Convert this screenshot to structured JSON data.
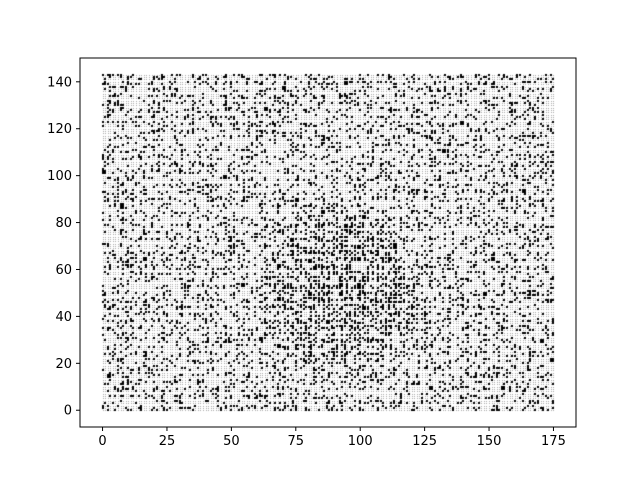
{
  "chart_data": {
    "type": "scatter",
    "title": "",
    "xlabel": "",
    "ylabel": "",
    "xlim": [
      -8.75,
      183.75
    ],
    "ylim": [
      -7.15,
      150.15
    ],
    "x_ticks": [
      0,
      25,
      50,
      75,
      100,
      125,
      150,
      175
    ],
    "y_ticks": [
      0,
      20,
      40,
      60,
      80,
      100,
      120,
      140
    ],
    "x_tick_labels": [
      "0",
      "25",
      "50",
      "75",
      "100",
      "125",
      "150",
      "175"
    ],
    "y_tick_labels": [
      "0",
      "20",
      "40",
      "60",
      "80",
      "100",
      "120",
      "140"
    ],
    "grid": false,
    "legend": "none",
    "marker_color": "#000000",
    "marker": "pixel",
    "data_extent": {
      "x": [
        0,
        175
      ],
      "y": [
        0,
        143
      ]
    },
    "description_of_pattern": "",
    "dense_region": {
      "x": [
        60,
        125
      ],
      "y": [
        15,
        90
      ],
      "density_peak": 0.55
    },
    "background_density": 0.22
  }
}
